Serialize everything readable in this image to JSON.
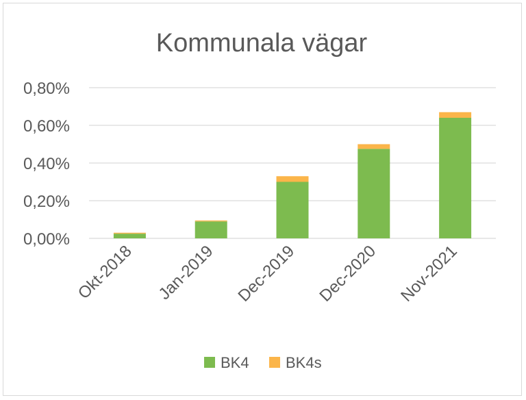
{
  "chart_data": {
    "type": "bar",
    "stacked": true,
    "title": "Kommunala vägar",
    "categories": [
      "Okt-2018",
      "Jan-2019",
      "Dec-2019",
      "Dec-2020",
      "Nov-2021"
    ],
    "series": [
      {
        "name": "BK4",
        "color": "#7dbb4f",
        "values": [
          0.025,
          0.09,
          0.3,
          0.475,
          0.64
        ]
      },
      {
        "name": "BK4s",
        "color": "#fbb54a",
        "values": [
          0.005,
          0.005,
          0.03,
          0.025,
          0.03
        ]
      }
    ],
    "ylim": [
      0,
      0.8
    ],
    "yticks": [
      "0,00%",
      "0,20%",
      "0,40%",
      "0,60%",
      "0,80%"
    ],
    "ytick_values": [
      0,
      0.2,
      0.4,
      0.6,
      0.8
    ],
    "grid": true,
    "legend": "bottom"
  }
}
